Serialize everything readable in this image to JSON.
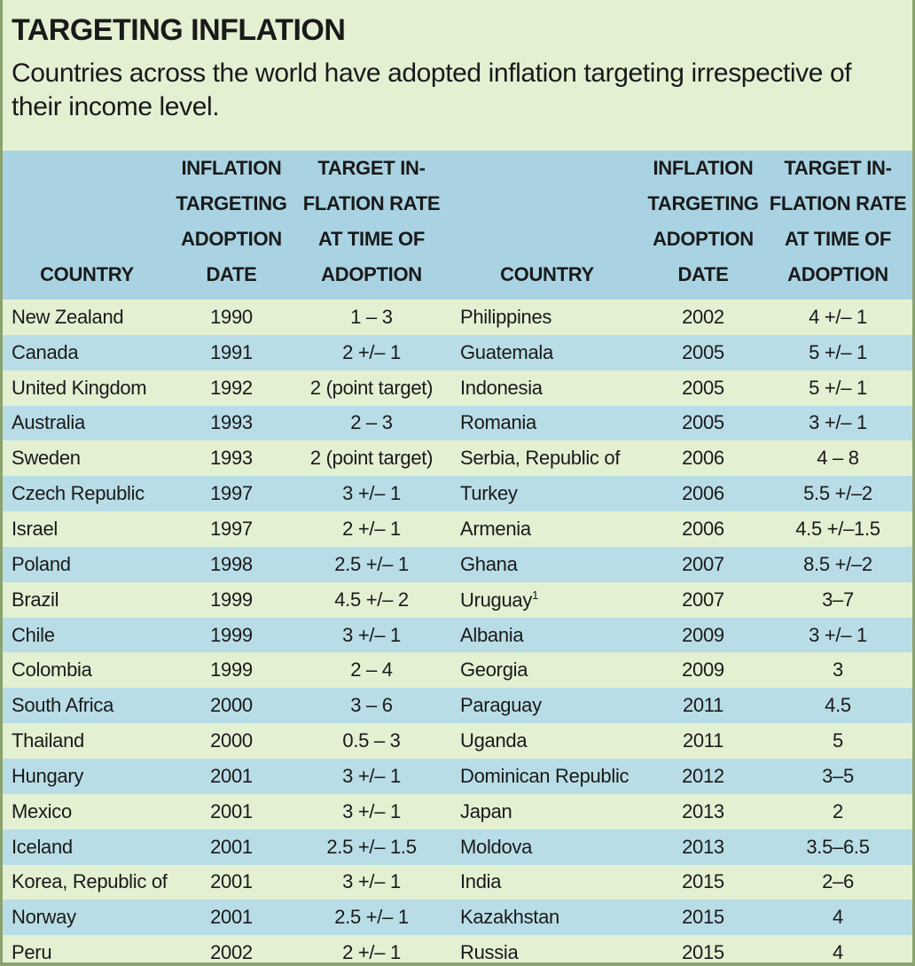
{
  "title": "TARGETING INFLATION",
  "subtitle": "Countries across the world have adopted inflation targeting irrespective of their income level.",
  "headers": {
    "country": "COUNTRY",
    "adoption": [
      "INFLATION",
      "TARGETING",
      "ADOPTION",
      "DATE"
    ],
    "target": [
      "TARGET IN-",
      "FLATION RATE",
      "AT TIME OF",
      "ADOPTION"
    ]
  },
  "rows": [
    {
      "c1": "New Zealand",
      "d1": "1990",
      "t1": "1 – 3",
      "c2": "Philippines",
      "d2": "2002",
      "t2": "4 +/– 1"
    },
    {
      "c1": "Canada",
      "d1": "1991",
      "t1": "2 +/– 1",
      "c2": "Guatemala",
      "d2": "2005",
      "t2": "5 +/– 1"
    },
    {
      "c1": "United Kingdom",
      "d1": "1992",
      "t1": "2 (point target)",
      "c2": "Indonesia",
      "d2": "2005",
      "t2": "5 +/– 1"
    },
    {
      "c1": "Australia",
      "d1": "1993",
      "t1": "2 – 3",
      "c2": "Romania",
      "d2": "2005",
      "t2": "3 +/– 1"
    },
    {
      "c1": "Sweden",
      "d1": "1993",
      "t1": "2 (point target)",
      "c2": "Serbia, Republic of",
      "d2": "2006",
      "t2": "4 – 8"
    },
    {
      "c1": "Czech Republic",
      "d1": "1997",
      "t1": "3 +/– 1",
      "c2": "Turkey",
      "d2": "2006",
      "t2": "5.5 +/–2"
    },
    {
      "c1": "Israel",
      "d1": "1997",
      "t1": "2 +/– 1",
      "c2": "Armenia",
      "d2": "2006",
      "t2": "4.5 +/–1.5"
    },
    {
      "c1": "Poland",
      "d1": "1998",
      "t1": "2.5 +/– 1",
      "c2": "Ghana",
      "d2": "2007",
      "t2": "8.5 +/–2"
    },
    {
      "c1": "Brazil",
      "d1": "1999",
      "t1": "4.5 +/– 2",
      "c2": "Uruguay",
      "c2_sup": "1",
      "d2": "2007",
      "t2": "3–7"
    },
    {
      "c1": "Chile",
      "d1": "1999",
      "t1": "3 +/– 1",
      "c2": "Albania",
      "d2": "2009",
      "t2": "3 +/– 1"
    },
    {
      "c1": "Colombia",
      "d1": "1999",
      "t1": "2 – 4",
      "c2": "Georgia",
      "d2": "2009",
      "t2": "3"
    },
    {
      "c1": "South Africa",
      "d1": "2000",
      "t1": "3 – 6",
      "c2": "Paraguay",
      "d2": "2011",
      "t2": "4.5"
    },
    {
      "c1": "Thailand",
      "d1": "2000",
      "t1": "0.5 – 3",
      "c2": "Uganda",
      "d2": "2011",
      "t2": "5"
    },
    {
      "c1": "Hungary",
      "d1": "2001",
      "t1": "3 +/– 1",
      "c2": "Dominican Republic",
      "d2": "2012",
      "t2": "3–5"
    },
    {
      "c1": "Mexico",
      "d1": "2001",
      "t1": "3 +/– 1",
      "c2": "Japan",
      "d2": "2013",
      "t2": "2"
    },
    {
      "c1": "Iceland",
      "d1": "2001",
      "t1": "2.5 +/– 1.5",
      "c2": "Moldova",
      "d2": "2013",
      "t2": "3.5–6.5"
    },
    {
      "c1": "Korea, Republic of",
      "d1": "2001",
      "t1": "3 +/– 1",
      "c2": "India",
      "d2": "2015",
      "t2": "2–6"
    },
    {
      "c1": "Norway",
      "d1": "2001",
      "t1": "2.5 +/– 1",
      "c2": "Kazakhstan",
      "d2": "2015",
      "t2": "4"
    },
    {
      "c1": "Peru",
      "d1": "2002",
      "t1": "2 +/– 1",
      "c2": "Russia",
      "d2": "2015",
      "t2": "4"
    }
  ]
}
